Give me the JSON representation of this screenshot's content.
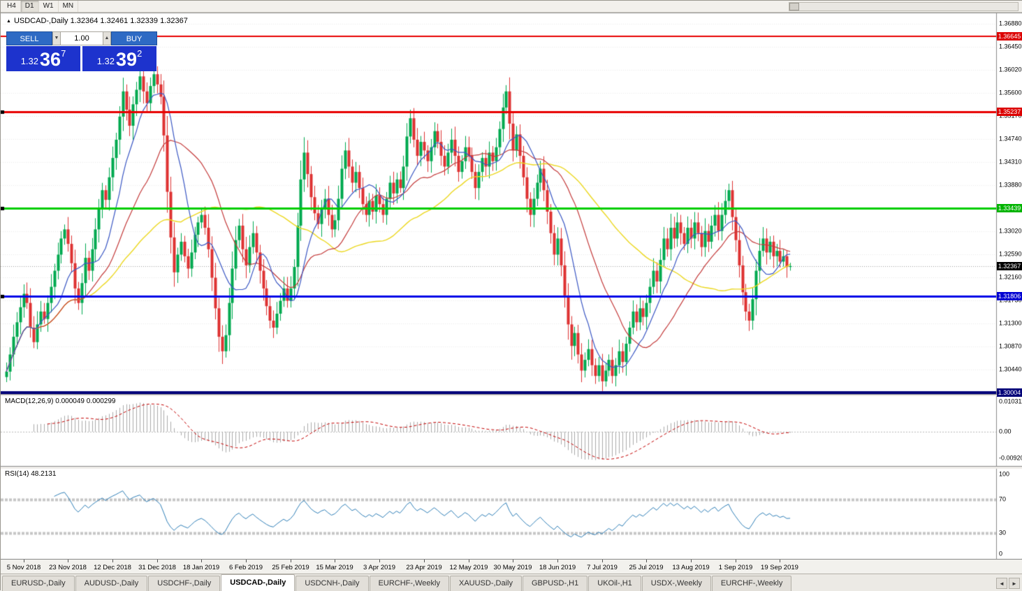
{
  "toolbar": {
    "timeframes": [
      {
        "label": "H4",
        "active": false
      },
      {
        "label": "D1",
        "active": true
      },
      {
        "label": "W1",
        "active": false
      },
      {
        "label": "MN",
        "active": false
      }
    ]
  },
  "icons": {
    "header_marker": "▲",
    "volume_down": "▼",
    "volume_up": "▲",
    "tab_scroll_left": "◄",
    "tab_scroll_right": "►"
  },
  "header": {
    "text": "USDCAD-,Daily 1.32364 1.32461 1.32339 1.32367"
  },
  "ohlc": {
    "open": "1.32364",
    "high": "1.32461",
    "low": "1.32339",
    "close": "1.32367"
  },
  "trade_panel": {
    "sell_label": "SELL",
    "buy_label": "BUY",
    "volume": "1.00",
    "sell_price": {
      "prefix": "1.32",
      "big": "36",
      "sup": "7"
    },
    "buy_price": {
      "prefix": "1.32",
      "big": "39",
      "sup": "2"
    },
    "colors": {
      "button_blue": "#2e6ac4",
      "price_blue": "#1d33cd"
    }
  },
  "price_axis": {
    "labels": [
      "1.36880",
      "1.36450",
      "1.36020",
      "1.35600",
      "1.35170",
      "1.34740",
      "1.34310",
      "1.33880",
      "1.33450",
      "1.33020",
      "1.32590",
      "1.32160",
      "1.31730",
      "1.31300",
      "1.30870",
      "1.30440",
      "1.30010"
    ],
    "top_value": 1.3688,
    "bottom_value": 1.3001
  },
  "current_price": {
    "text": "1.32367",
    "value": 1.32367,
    "bg": "#000000",
    "fg": "#ffffff"
  },
  "levels": [
    {
      "text": "1.36645",
      "value": 1.36645,
      "color": "#e80000",
      "width": 2,
      "label_bg": "#dc0000",
      "anchor": false
    },
    {
      "text": "1.35237",
      "value": 1.35237,
      "color": "#e80000",
      "width": 3,
      "label_bg": "#dc0000",
      "anchor": true
    },
    {
      "text": "1.33439",
      "value": 1.33439,
      "color": "#00ce00",
      "width": 3,
      "label_bg": "#00b400",
      "anchor": true
    },
    {
      "text": "1.31806",
      "value": 1.31806,
      "color": "#0008e8",
      "width": 3,
      "label_bg": "#0000d2",
      "anchor": true
    },
    {
      "text": "1.30004",
      "value": 1.30004,
      "color": "#00007a",
      "width": 4,
      "label_bg": "#000078",
      "anchor": false
    }
  ],
  "macd": {
    "title": "MACD(12,26,9) 0.000049 0.000299",
    "fast": 12,
    "slow": 26,
    "signal": 9,
    "value_main": "0.000049",
    "value_signal": "0.000299",
    "axis_labels": [
      {
        "text": "0.010311",
        "value": 0.010311
      },
      {
        "text": "0.00",
        "value": 0
      },
      {
        "text": "-0.009203",
        "value": -0.009203
      }
    ]
  },
  "rsi": {
    "title": "RSI(14) 48.2131",
    "period": 14,
    "value": "48.2131",
    "levels": [
      70,
      30
    ],
    "axis_labels": [
      {
        "text": "100",
        "value": 100
      },
      {
        "text": "70",
        "value": 70
      },
      {
        "text": "30",
        "value": 30
      },
      {
        "text": "0",
        "value": 0
      }
    ]
  },
  "date_axis": {
    "labels": [
      "5 Nov 2018",
      "23 Nov 2018",
      "12 Dec 2018",
      "31 Dec 2018",
      "18 Jan 2019",
      "6 Feb 2019",
      "25 Feb 2019",
      "15 Mar 2019",
      "3 Apr 2019",
      "23 Apr 2019",
      "12 May 2019",
      "30 May 2019",
      "18 Jun 2019",
      "7 Jul 2019",
      "25 Jul 2019",
      "13 Aug 2019",
      "1 Sep 2019",
      "19 Sep 2019"
    ],
    "indices": [
      5,
      18,
      31,
      44,
      57,
      70,
      83,
      96,
      109,
      122,
      135,
      148,
      161,
      174,
      187,
      200,
      213,
      226
    ]
  },
  "tabs": {
    "items": [
      {
        "label": "EURUSD-,Daily",
        "active": false
      },
      {
        "label": "AUDUSD-,Daily",
        "active": false
      },
      {
        "label": "USDCHF-,Daily",
        "active": false
      },
      {
        "label": "USDCAD-,Daily",
        "active": true
      },
      {
        "label": "USDCNH-,Daily",
        "active": false
      },
      {
        "label": "EURCHF-,Weekly",
        "active": false
      },
      {
        "label": "XAUUSD-,Daily",
        "active": false
      },
      {
        "label": "GBPUSD-,H1",
        "active": false
      },
      {
        "label": "UKOil-,H1",
        "active": false
      },
      {
        "label": "USDX-,Weekly",
        "active": false
      },
      {
        "label": "EURCHF-,Weekly",
        "active": false
      }
    ]
  },
  "chart_data": {
    "type": "candlestick",
    "title": "USDCAD-,Daily",
    "ylim": [
      1.3001,
      1.3688
    ],
    "date_labels": [
      "5 Nov 2018",
      "23 Nov 2018",
      "12 Dec 2018",
      "31 Dec 2018",
      "18 Jan 2019",
      "6 Feb 2019",
      "25 Feb 2019",
      "15 Mar 2019",
      "3 Apr 2019",
      "23 Apr 2019",
      "12 May 2019",
      "30 May 2019",
      "18 Jun 2019",
      "7 Jul 2019",
      "25 Jul 2019",
      "13 Aug 2019",
      "1 Sep 2019",
      "19 Sep 2019"
    ],
    "up_color": "#00a94f",
    "down_color": "#de3232",
    "ma_periods": {
      "fast": 10,
      "mid": 24,
      "slow": 52
    },
    "ma_colors": {
      "fast": "#3a57c4",
      "mid": "#c43a3a",
      "slow": "#ecd820"
    },
    "closes": [
      1.304,
      1.3072,
      1.3105,
      1.3132,
      1.316,
      1.3185,
      1.3168,
      1.3122,
      1.3095,
      1.3128,
      1.3152,
      1.3138,
      1.3168,
      1.3198,
      1.3228,
      1.3258,
      1.3288,
      1.3305,
      1.3278,
      1.3242,
      1.3195,
      1.3168,
      1.3205,
      1.3252,
      1.3228,
      1.3268,
      1.3305,
      1.3342,
      1.3378,
      1.336,
      1.3402,
      1.3438,
      1.3472,
      1.3515,
      1.3562,
      1.3528,
      1.3498,
      1.3538,
      1.3565,
      1.359,
      1.3562,
      1.354,
      1.3572,
      1.3594,
      1.3575,
      1.3552,
      1.348,
      1.3375,
      1.329,
      1.3225,
      1.3258,
      1.3282,
      1.3255,
      1.3232,
      1.3262,
      1.3295,
      1.3318,
      1.3332,
      1.3308,
      1.3268,
      1.3215,
      1.3158,
      1.3105,
      1.3078,
      1.3108,
      1.3168,
      1.3232,
      1.3285,
      1.3312,
      1.3268,
      1.3238,
      1.3272,
      1.3298,
      1.3262,
      1.3228,
      1.3195,
      1.3162,
      1.3135,
      1.3122,
      1.3148,
      1.3172,
      1.3195,
      1.3172,
      1.3195,
      1.3235,
      1.3312,
      1.3398,
      1.3448,
      1.3408,
      1.3365,
      1.3335,
      1.3315,
      1.3345,
      1.3362,
      1.3332,
      1.3305,
      1.3322,
      1.3362,
      1.3418,
      1.3452,
      1.3422,
      1.3392,
      1.3412,
      1.3382,
      1.3352,
      1.3332,
      1.3358,
      1.3338,
      1.3368,
      1.3352,
      1.3332,
      1.3362,
      1.3392,
      1.3372,
      1.3398,
      1.3382,
      1.3422,
      1.3478,
      1.3512,
      1.3472,
      1.3442,
      1.3468,
      1.3452,
      1.3432,
      1.3458,
      1.3488,
      1.3468,
      1.3442,
      1.3422,
      1.3448,
      1.3472,
      1.3442,
      1.3412,
      1.3432,
      1.3458,
      1.3442,
      1.3412,
      1.3382,
      1.3412,
      1.3438,
      1.3422,
      1.3448,
      1.3432,
      1.3458,
      1.3492,
      1.3532,
      1.3562,
      1.3502,
      1.3452,
      1.3482,
      1.3442,
      1.3402,
      1.3362,
      1.3332,
      1.3362,
      1.3392,
      1.3418,
      1.3378,
      1.3338,
      1.3298,
      1.3258,
      1.3288,
      1.3238,
      1.3182,
      1.3128,
      1.3088,
      1.3112,
      1.3072,
      1.3042,
      1.3062,
      1.3082,
      1.3052,
      1.3032,
      1.3052,
      1.3022,
      1.3042,
      1.3062,
      1.3032,
      1.3052,
      1.3078,
      1.3058,
      1.3092,
      1.3122,
      1.3152,
      1.3132,
      1.3158,
      1.3142,
      1.3168,
      1.3198,
      1.3228,
      1.3208,
      1.3248,
      1.3288,
      1.3268,
      1.3308,
      1.3288,
      1.3318,
      1.3298,
      1.3278,
      1.3308,
      1.3288,
      1.3318,
      1.3298,
      1.3272,
      1.3302,
      1.3282,
      1.3312,
      1.3332,
      1.3302,
      1.3332,
      1.3358,
      1.3378,
      1.3328,
      1.3285,
      1.3238,
      1.3188,
      1.3152,
      1.3135,
      1.3175,
      1.3228,
      1.3265,
      1.3288,
      1.3262,
      1.3282,
      1.3255,
      1.3265,
      1.3245,
      1.3255,
      1.3235,
      1.32367
    ]
  }
}
